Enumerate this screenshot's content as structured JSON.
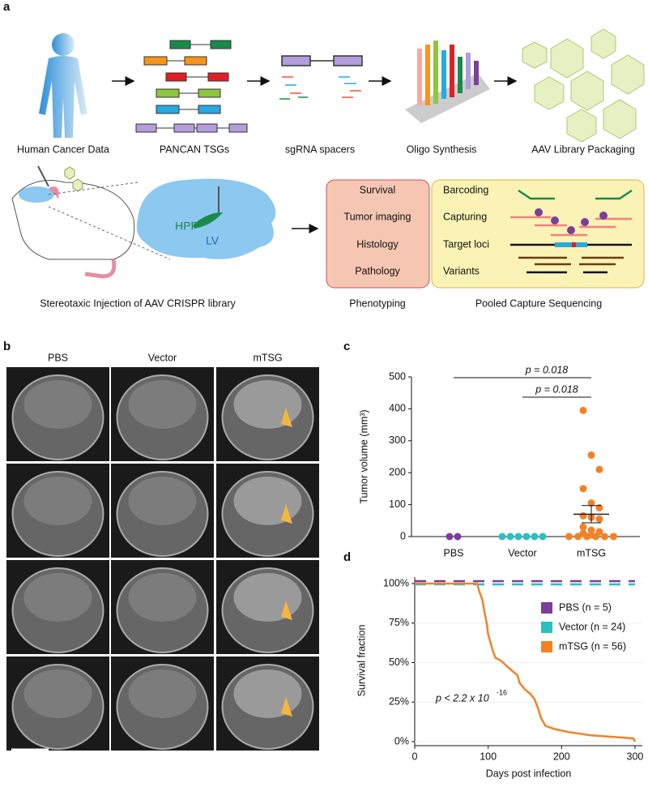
{
  "panel_labels": [
    "a",
    "b",
    "c",
    "d"
  ],
  "panel_a": {
    "steps": [
      "Human Cancer Data",
      "PANCAN TSGs",
      "sgRNA spacers",
      "Oligo Synthesis",
      "AAV Library Packaging"
    ],
    "brain_labels": [
      "HPF",
      "LV"
    ],
    "injection": "Stereotaxic Injection of AAV CRISPR library",
    "phenotyping": {
      "items": [
        "Survival",
        "Tumor imaging",
        "Histology",
        "Pathology"
      ],
      "title": "Phenotyping"
    },
    "sequencing": {
      "items": [
        "Barcoding",
        "Capturing",
        "Target loci",
        "Variants"
      ],
      "title": "Pooled Capture Sequencing"
    }
  },
  "panel_b": {
    "columns": [
      "PBS",
      "Vector",
      "mTSG"
    ]
  },
  "chart_data": [
    {
      "type": "strip",
      "ylabel": "Tumor volume (mm³)",
      "categories": [
        "PBS",
        "Vector",
        "mTSG"
      ],
      "series": [
        {
          "name": "PBS",
          "color": "#7b3f98",
          "values": [
            0,
            0
          ]
        },
        {
          "name": "Vector",
          "color": "#2bbfbf",
          "values": [
            0,
            0,
            0,
            0,
            0,
            0
          ]
        },
        {
          "name": "mTSG",
          "color": "#f28226",
          "values": [
            395,
            255,
            210,
            150,
            105,
            90,
            65,
            60,
            55,
            30,
            20,
            15,
            10,
            5,
            0,
            0,
            0,
            0,
            0,
            0
          ],
          "mean": 70,
          "error": 27
        }
      ],
      "annotations": [
        "p = 0.018",
        "p = 0.018"
      ],
      "ylim": [
        0,
        500
      ],
      "yticks": [
        0,
        100,
        200,
        300,
        400,
        500
      ]
    },
    {
      "type": "line",
      "xlabel": "Days post infection",
      "ylabel": "Survival fraction",
      "series": [
        {
          "name": "PBS  (n = 5)",
          "color": "#7b3f98",
          "dashed": true,
          "x": [
            0,
            300
          ],
          "values": [
            100,
            100
          ]
        },
        {
          "name": "Vector  (n = 24)",
          "color": "#2bbfbf",
          "dashed": true,
          "x": [
            0,
            300
          ],
          "values": [
            100,
            100
          ]
        },
        {
          "name": "mTSG  (n = 56)",
          "color": "#f28226",
          "dashed": false,
          "x": [
            0,
            85,
            88,
            92,
            95,
            98,
            100,
            103,
            106,
            110,
            118,
            125,
            132,
            140,
            143,
            150,
            158,
            163,
            168,
            172,
            178,
            190,
            210,
            240,
            298,
            300
          ],
          "values": [
            100,
            100,
            95,
            90,
            82,
            75,
            68,
            63,
            58,
            53,
            51,
            48,
            45,
            42,
            37,
            33,
            30,
            27,
            21,
            15,
            10,
            8,
            6,
            4,
            2,
            0
          ]
        }
      ],
      "annotation": {
        "text": "p < 2.2 x 10",
        "superscript": "-16"
      },
      "xlim": [
        0,
        310
      ],
      "xticks": [
        0,
        100,
        200,
        300
      ],
      "ylim": [
        0,
        105
      ],
      "yticks": [
        {
          "value": 0,
          "label": "0%"
        },
        {
          "value": 25,
          "label": "25%"
        },
        {
          "value": 50,
          "label": "50%"
        },
        {
          "value": 75,
          "label": "75%"
        },
        {
          "value": 100,
          "label": "100%"
        }
      ]
    }
  ]
}
